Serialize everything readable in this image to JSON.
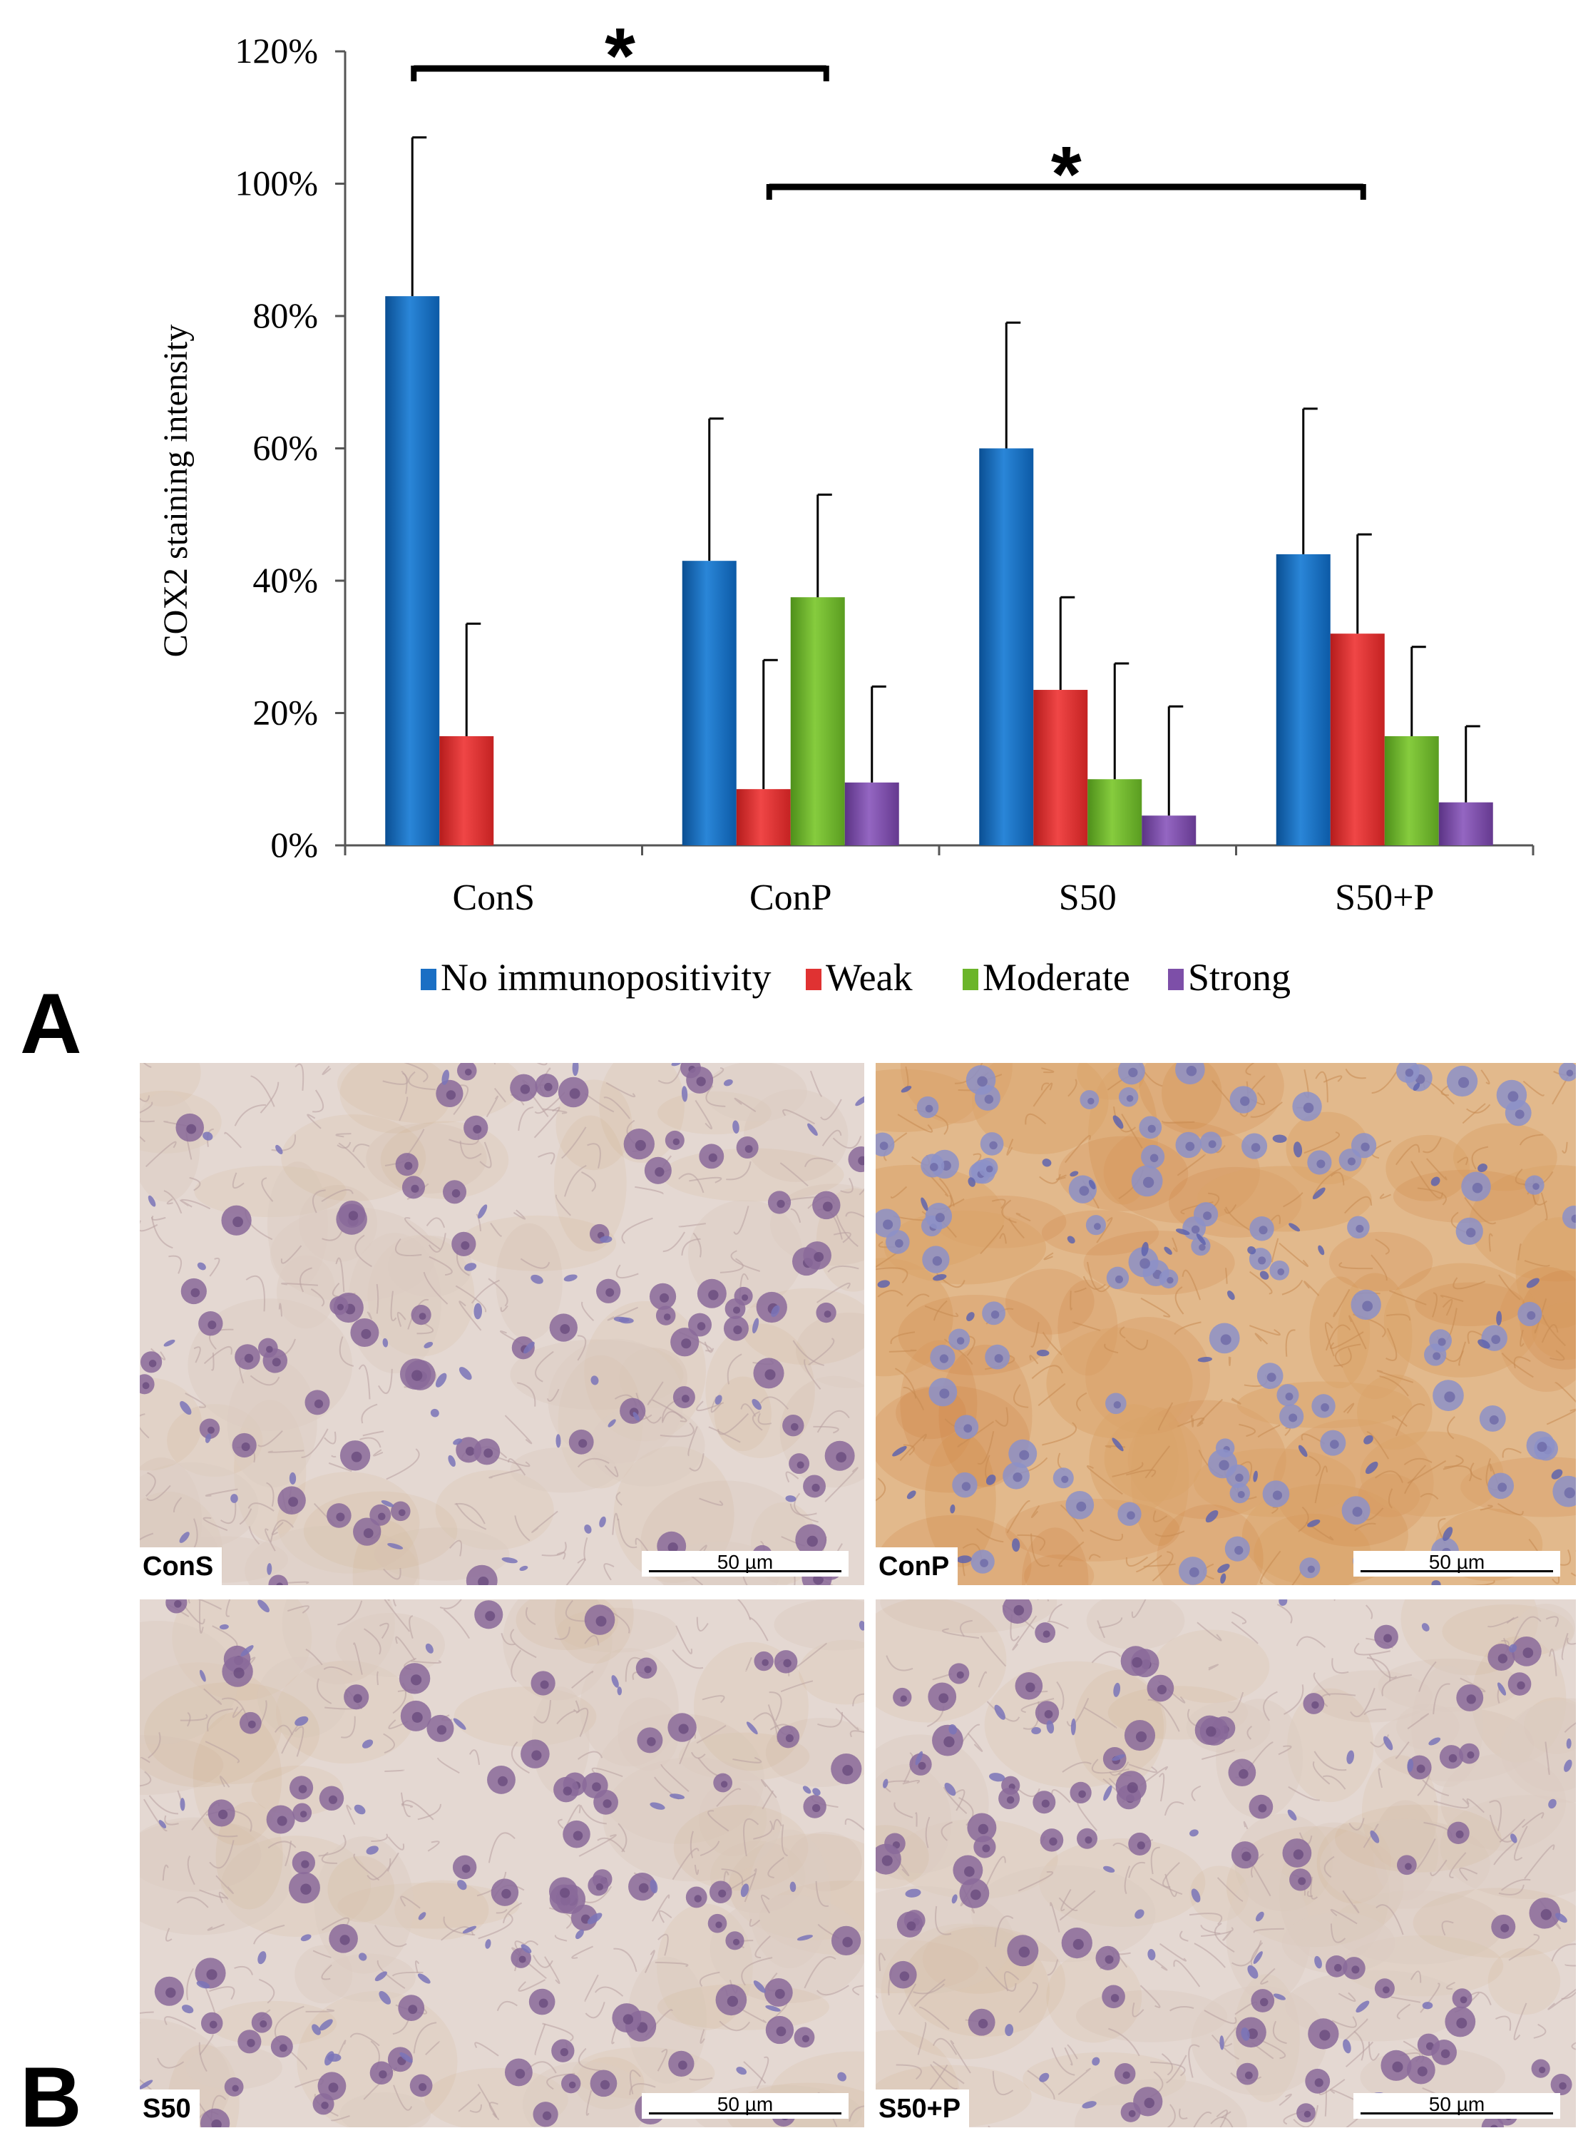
{
  "chart_data": {
    "type": "bar",
    "ylabel": "COX2 staining intensity",
    "ylim": [
      0,
      120
    ],
    "yticks": [
      "0%",
      "20%",
      "40%",
      "60%",
      "80%",
      "100%",
      "120%"
    ],
    "grid": false,
    "legend_position": "bottom",
    "categories": [
      "ConS",
      "ConP",
      "S50",
      "S50+P"
    ],
    "series": [
      {
        "name": "No immunopositivity",
        "color": "#1a6fc4",
        "values": [
          83,
          43,
          60,
          44
        ],
        "errors": [
          24,
          21.5,
          19,
          22
        ]
      },
      {
        "name": "Weak",
        "color": "#e03232",
        "values": [
          16.5,
          8.5,
          23.5,
          32
        ],
        "errors": [
          17,
          19.5,
          14,
          15
        ]
      },
      {
        "name": "Moderate",
        "color": "#6bb52a",
        "values": [
          null,
          37.5,
          10,
          16.5
        ],
        "errors": [
          null,
          15.5,
          17.5,
          13.5
        ]
      },
      {
        "name": "Strong",
        "color": "#7d4fa8",
        "values": [
          null,
          9.5,
          4.5,
          6.5
        ],
        "errors": [
          null,
          14.5,
          16.5,
          11.5
        ]
      }
    ],
    "annotations": [
      {
        "text": "*",
        "from": "ConS",
        "to": "ConP"
      },
      {
        "text": "*",
        "from": "ConP",
        "to": "S50+P"
      }
    ]
  },
  "panel_labels": {
    "a": "A",
    "b": "B"
  },
  "micrographs": [
    {
      "label": "ConS",
      "scale": "50 µm",
      "stain": "light"
    },
    {
      "label": "ConP",
      "scale": "50 µm",
      "stain": "strong"
    },
    {
      "label": "S50",
      "scale": "50 µm",
      "stain": "light"
    },
    {
      "label": "S50+P",
      "scale": "50 µm",
      "stain": "light"
    }
  ]
}
